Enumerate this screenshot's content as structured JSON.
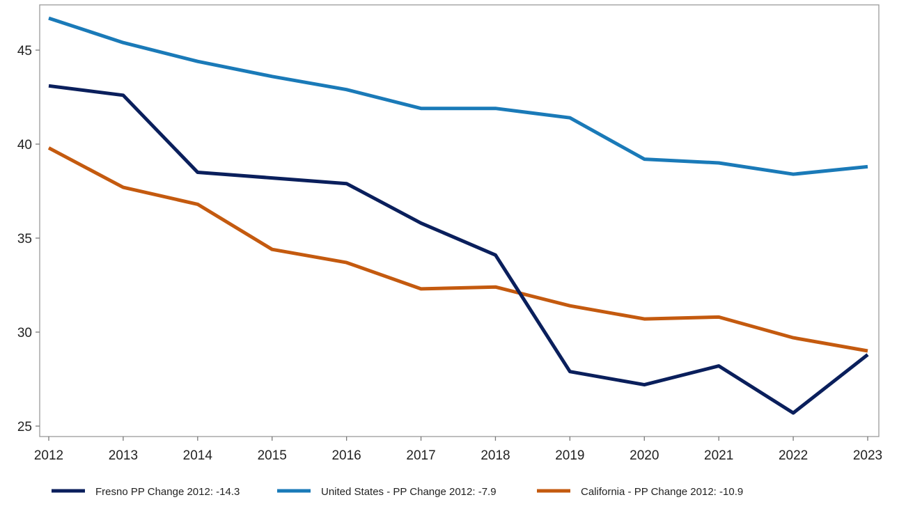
{
  "chart_data": {
    "type": "line",
    "title": "",
    "xlabel": "",
    "ylabel": "",
    "x": [
      2012,
      2013,
      2014,
      2015,
      2016,
      2017,
      2018,
      2019,
      2020,
      2021,
      2022,
      2023
    ],
    "ylim": [
      24.5,
      47.5
    ],
    "yticks": [
      25,
      30,
      35,
      40,
      45
    ],
    "grid": false,
    "legend_position": "bottom",
    "series": [
      {
        "name": "Fresno PP Change 2012: -14.3",
        "color": "#0a1f5c",
        "values": [
          43.1,
          42.6,
          38.5,
          38.2,
          37.9,
          35.8,
          34.1,
          27.9,
          27.2,
          28.2,
          25.7,
          28.8
        ]
      },
      {
        "name": "United States - PP Change 2012: -7.9",
        "color": "#1a7ab8",
        "values": [
          46.7,
          45.4,
          44.4,
          43.6,
          42.9,
          41.9,
          41.9,
          41.4,
          39.2,
          39.0,
          38.4,
          38.8
        ]
      },
      {
        "name": "California - PP Change 2012: -10.9",
        "color": "#c45a0f",
        "values": [
          39.8,
          37.7,
          36.8,
          34.4,
          33.7,
          32.3,
          32.4,
          31.4,
          30.7,
          30.8,
          29.7,
          29.0
        ]
      }
    ]
  }
}
